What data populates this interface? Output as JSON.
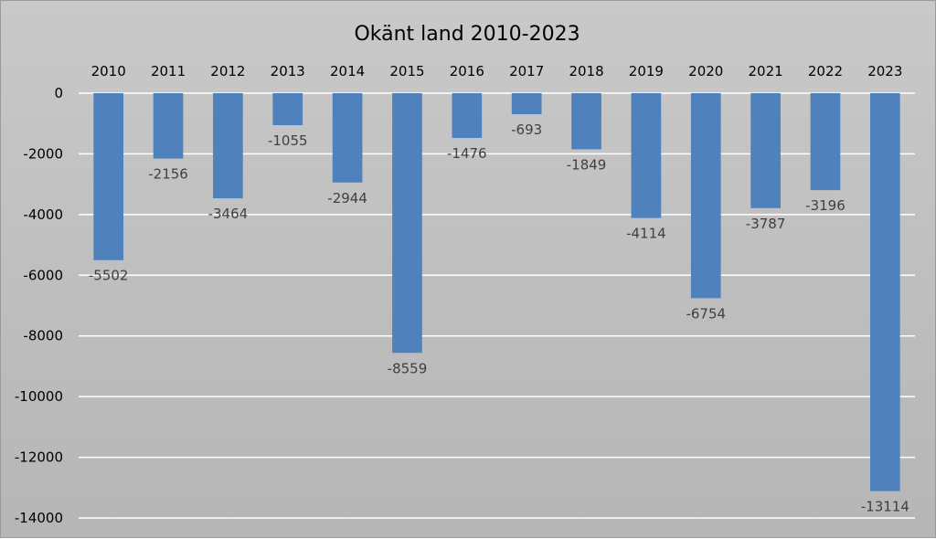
{
  "chart_data": {
    "type": "bar",
    "title": "Okänt land 2010-2023",
    "xlabel": "",
    "ylabel": "",
    "categories": [
      "2010",
      "2011",
      "2012",
      "2013",
      "2014",
      "2015",
      "2016",
      "2017",
      "2018",
      "2019",
      "2020",
      "2021",
      "2022",
      "2023"
    ],
    "values": [
      -5502,
      -2156,
      -3464,
      -1055,
      -2944,
      -8559,
      -1476,
      -693,
      -1849,
      -4114,
      -6754,
      -3787,
      -3196,
      -13114
    ],
    "data_labels": [
      "-5502",
      "-2156",
      "-3464",
      "-1055",
      "-2944",
      "-8559",
      "-1476",
      "-693",
      "-1849",
      "-4114",
      "-6754",
      "-3787",
      "-3196",
      "-13114"
    ],
    "ylim": [
      -14000,
      0
    ],
    "yticks": [
      0,
      -2000,
      -4000,
      -6000,
      -8000,
      -10000,
      -12000,
      -14000
    ],
    "ytick_labels": [
      "0",
      "-2000",
      "-4000",
      "-6000",
      "-8000",
      "-10000",
      "-12000",
      "-14000"
    ],
    "category_axis_position": "top",
    "grid": true,
    "legend": "none",
    "bar_color": "#4f81bd",
    "grid_color": "#ffffff",
    "background_color": "#c0c0c0"
  }
}
